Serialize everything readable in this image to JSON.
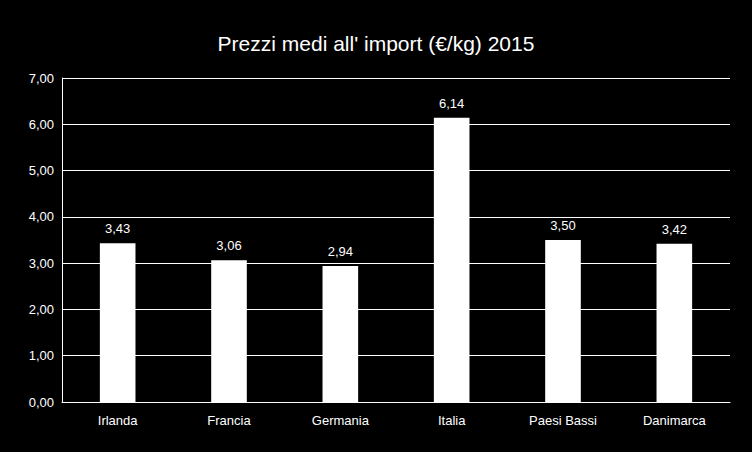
{
  "chart_data": {
    "type": "bar",
    "title": "Prezzi medi all' import (€/kg) 2015",
    "categories": [
      "Irlanda",
      "Francia",
      "Germania",
      "Italia",
      "Paesi Bassi",
      "Danimarca"
    ],
    "values": [
      3.43,
      3.06,
      2.94,
      6.14,
      3.5,
      3.42
    ],
    "value_labels": [
      "3,43",
      "3,06",
      "2,94",
      "6,14",
      "3,50",
      "3,42"
    ],
    "color": "#ffffff",
    "ylim": [
      0,
      7
    ],
    "yticks": [
      {
        "value": 0,
        "label": "0,00"
      },
      {
        "value": 1,
        "label": "1,00"
      },
      {
        "value": 2,
        "label": "2,00"
      },
      {
        "value": 3,
        "label": "3,00"
      },
      {
        "value": 4,
        "label": "4,00"
      },
      {
        "value": 5,
        "label": "5,00"
      },
      {
        "value": 6,
        "label": "6,00"
      },
      {
        "value": 7,
        "label": "7,00"
      }
    ],
    "grid": true,
    "data_labels": true
  }
}
